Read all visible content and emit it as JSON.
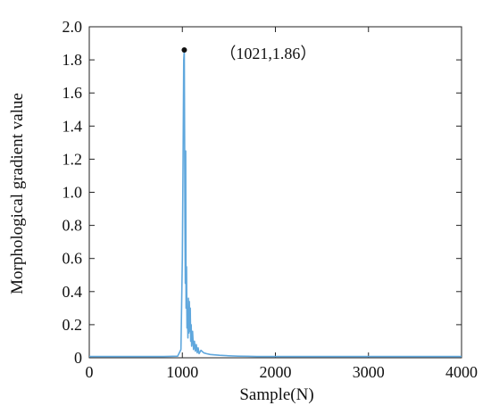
{
  "chart_data": {
    "type": "line",
    "xlabel": "Sample(N)",
    "ylabel": "Morphological gradient value",
    "xlim": [
      0,
      4000
    ],
    "ylim": [
      0,
      2.0
    ],
    "xticks": [
      0,
      1000,
      2000,
      3000,
      4000
    ],
    "xtick_labels": [
      "0",
      "1000",
      "2000",
      "3000",
      "4000"
    ],
    "yticks": [
      0,
      0.2,
      0.4,
      0.6,
      0.8,
      1.0,
      1.2,
      1.4,
      1.6,
      1.8,
      2.0
    ],
    "ytick_labels": [
      "0",
      "0.2",
      "0.4",
      "0.6",
      "0.8",
      "1.0",
      "1.2",
      "1.4",
      "1.6",
      "1.8",
      "2.0"
    ],
    "grid": false,
    "series": [
      {
        "color": "#5fa7dd",
        "x": [
          0,
          200,
          400,
          600,
          800,
          950,
          985,
          1000,
          1008,
          1015,
          1021,
          1024,
          1028,
          1032,
          1036,
          1040,
          1045,
          1050,
          1055,
          1060,
          1065,
          1070,
          1075,
          1080,
          1085,
          1090,
          1095,
          1100,
          1110,
          1120,
          1130,
          1140,
          1150,
          1160,
          1170,
          1180,
          1200,
          1230,
          1260,
          1300,
          1400,
          1500,
          1600,
          1700,
          1800,
          2000,
          2500,
          3000,
          3500,
          4000
        ],
        "y": [
          0.008,
          0.008,
          0.008,
          0.008,
          0.008,
          0.01,
          0.05,
          0.6,
          1.2,
          1.8,
          1.86,
          1.4,
          0.85,
          0.45,
          1.25,
          0.3,
          0.55,
          0.18,
          0.3,
          0.12,
          0.36,
          0.15,
          0.34,
          0.16,
          0.3,
          0.1,
          0.2,
          0.07,
          0.16,
          0.05,
          0.1,
          0.04,
          0.08,
          0.03,
          0.06,
          0.025,
          0.045,
          0.03,
          0.025,
          0.02,
          0.015,
          0.012,
          0.01,
          0.009,
          0.008,
          0.008,
          0.008,
          0.008,
          0.008,
          0.008
        ]
      }
    ],
    "annotations": [
      {
        "text": "（1021,1.86）",
        "x": 1021,
        "y": 1.86,
        "marker_color": "#111111"
      }
    ]
  }
}
